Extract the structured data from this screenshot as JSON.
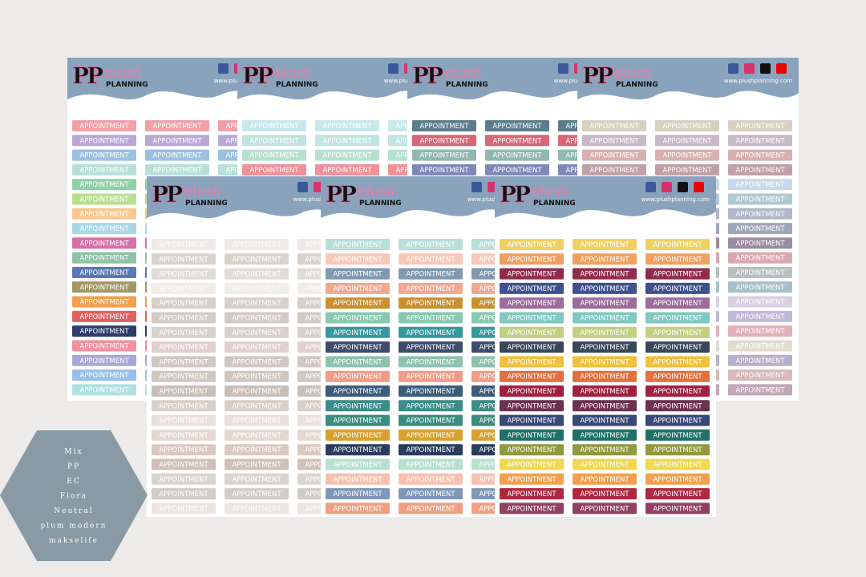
{
  "brand": {
    "initials": "PP",
    "name": "plush",
    "sub": "PLANNING",
    "url": "www.plushplanning.com"
  },
  "sticker_label": "APPOINTMENT",
  "sheets": [
    {
      "colors": [
        "#f0a0a8",
        "#b8a8d8",
        "#9cc0e0",
        "#b8e0d8",
        "#90d0a8",
        "#b8e090",
        "#f8c890",
        "#a8d8e8",
        "#d870a8",
        "#90c0a8",
        "#5878b8",
        "#a09868",
        "#f0a050",
        "#e06060",
        "#2c3c6c",
        "#f090a0",
        "#a8a8d8",
        "#98c0e8",
        "#b0e0e0"
      ]
    },
    {
      "colors": [
        "#c8e8ec",
        "#c0e4e0",
        "#b8e0d0",
        "#f09098",
        "#a8d8d0",
        "#c0d8e8",
        "#b8d8c8",
        "#e8c0c0",
        "#c8d0e8",
        "#b8e0e0",
        "#d0e8d8",
        "#f0c8c8",
        "#c8e0f0",
        "#d8e8e0",
        "#e8d0d8",
        "#c0e0e8",
        "#d0d8f0",
        "#e0f0e8",
        "#f0d8d8"
      ]
    },
    {
      "colors": [
        "#5c7c8c",
        "#d86878",
        "#90b8b0",
        "#8088b8",
        "#6c8c9c",
        "#c87888",
        "#88a8a0",
        "#7080a8",
        "#5c7c8c",
        "#d86878",
        "#90b8b0",
        "#8088b8",
        "#6c8c9c",
        "#c87888",
        "#88a8a0",
        "#7080a8",
        "#5c7c8c",
        "#d86878",
        "#90b8b0"
      ]
    },
    {
      "colors": [
        "#d8d0c0",
        "#c8b8c8",
        "#d8b0b0",
        "#c0a0a8",
        "#c8d8e8",
        "#b0c8d0",
        "#b0b8c8",
        "#a0a8b8",
        "#9c8ca0",
        "#d8a8b0",
        "#b8c0c0",
        "#a8c0c8",
        "#d8d0e0",
        "#c0b8d8",
        "#e0b0b8",
        "#e0dcd0",
        "#b8b0c8",
        "#d8b8b8",
        "#c0a8b8"
      ]
    },
    {
      "colors": [
        "#f0e8e8",
        "#d8d4cc",
        "#e0dcd8",
        "#f0ece8",
        "#d8d0c8",
        "#d0ccc4",
        "#d8d0cc",
        "#e0d0d0",
        "#d0c8c4",
        "#d0c8c0",
        "#c8c0b8",
        "#d8d0c8",
        "#e8e0dc",
        "#e4d8d0",
        "#dcc8c0",
        "#d0c0b8",
        "#d8d4d0",
        "#d0ccc8",
        "#ece4e0"
      ]
    },
    {
      "colors": [
        "#b8e0d8",
        "#f8c8b8",
        "#8098b0",
        "#f0a890",
        "#c89030",
        "#88c8b0",
        "#3898a0",
        "#3c4c6c",
        "#90c0b0",
        "#f09c88",
        "#3c5c7c",
        "#3c8c88",
        "#3c8c80",
        "#d8a030",
        "#2c3c5c",
        "#b8e0d0",
        "#f8c0b0",
        "#8098b8",
        "#f0a080"
      ]
    },
    {
      "colors": [
        "#f0d060",
        "#f0a060",
        "#902c4c",
        "#405090",
        "#9c6c9c",
        "#80c8c0",
        "#c0d080",
        "#384858",
        "#f0c040",
        "#e07040",
        "#a02040",
        "#6c3050",
        "#384878",
        "#207068",
        "#909840",
        "#f0d850",
        "#f0a050",
        "#b02840",
        "#904060"
      ]
    }
  ],
  "badge": {
    "lines": [
      "Mix",
      "PP",
      "EC",
      "Flora",
      "Neutral",
      "plum modern",
      "makselife"
    ]
  }
}
